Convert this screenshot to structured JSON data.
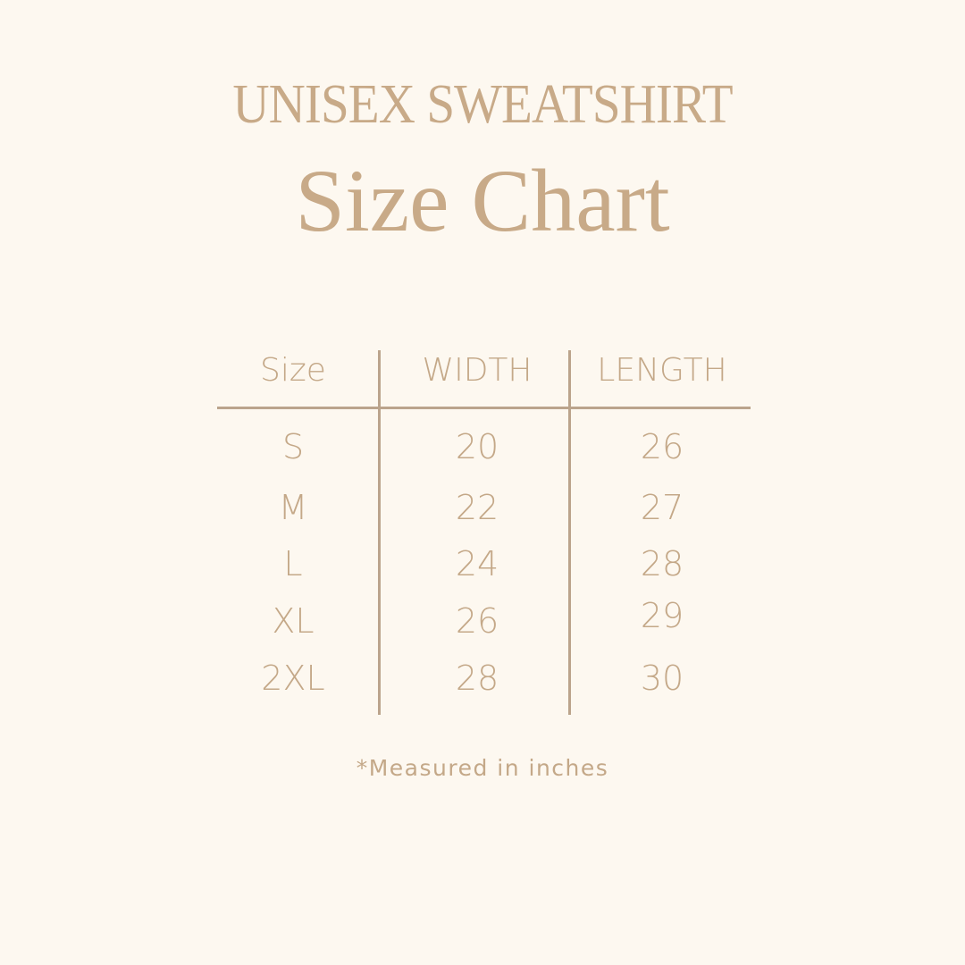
{
  "header": {
    "title": "UNISEX SWEATSHIRT",
    "subtitle": "Size Chart"
  },
  "colors": {
    "background": "#fdf8f0",
    "text": "#c4a888",
    "lines": "#bba48c"
  },
  "table": {
    "columns": [
      "Size",
      "WIDTH",
      "LENGTH"
    ],
    "rows": [
      [
        "S",
        "20",
        "26"
      ],
      [
        "M",
        "22",
        "27"
      ],
      [
        "L",
        "24",
        "28"
      ],
      [
        "XL",
        "26",
        "29"
      ],
      [
        "2XL",
        "28",
        "30"
      ]
    ]
  },
  "footer": {
    "note": "*Measured in inches"
  }
}
